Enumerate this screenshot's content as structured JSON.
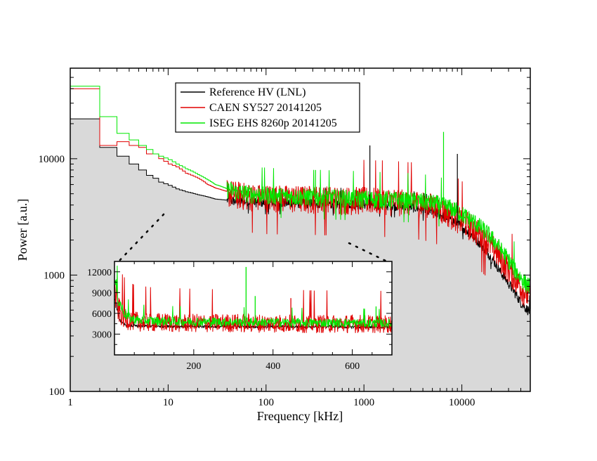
{
  "chart_data": [
    {
      "type": "line",
      "title": "",
      "xlabel": "Frequency [kHz]",
      "ylabel": "Power [a.u.]",
      "xscale": "log",
      "yscale": "log",
      "xlim": [
        1,
        50000
      ],
      "ylim": [
        100,
        60000
      ],
      "xticks": [
        1,
        10,
        100,
        1000,
        10000
      ],
      "xtick_labels": [
        "1",
        "10",
        "100",
        "1000",
        "10000"
      ],
      "yticks": [
        100,
        1000,
        10000
      ],
      "ytick_labels": [
        "100",
        "1000",
        "10000"
      ],
      "grid": false,
      "legend": {
        "position": "top-center",
        "entries": [
          "Reference HV (LNL)",
          "CAEN SY527 20141205",
          "ISEG EHS 8260p 20141205"
        ]
      },
      "series": [
        {
          "name": "Reference HV (LNL)",
          "color": "#000000",
          "filled": true,
          "fill_color": "#d9d9d9",
          "x": [
            1,
            2,
            3,
            4,
            5,
            6,
            7,
            8,
            10,
            12,
            15,
            20,
            25,
            30,
            40,
            50,
            70,
            100,
            150,
            200,
            300,
            500,
            700,
            1000,
            1500,
            2000,
            3000,
            4000,
            5000,
            6000,
            7000,
            8000,
            9000,
            10000,
            12000,
            15000,
            20000,
            25000,
            30000,
            35000,
            40000,
            45000,
            50000
          ],
          "y": [
            22000,
            12500,
            10500,
            9000,
            8000,
            7200,
            6800,
            6300,
            5900,
            5500,
            5200,
            4900,
            4700,
            4500,
            4400,
            4300,
            4250,
            4200,
            4200,
            4150,
            4150,
            4100,
            4100,
            4050,
            4000,
            3950,
            3850,
            3700,
            3500,
            3300,
            3100,
            2950,
            2800,
            2600,
            2300,
            1900,
            1400,
            1050,
            850,
            700,
            580,
            520,
            480
          ]
        },
        {
          "name": "CAEN SY527 20141205",
          "color": "#e00000",
          "x": [
            1,
            2,
            3,
            4,
            5,
            6,
            7,
            8,
            10,
            12,
            15,
            20,
            25,
            30,
            40,
            50,
            70,
            100,
            150,
            200,
            300,
            500,
            700,
            1000,
            1500,
            2000,
            3000,
            4000,
            5000,
            6000,
            7000,
            8000,
            9000,
            10000,
            12000,
            15000,
            20000,
            25000,
            30000,
            35000,
            40000,
            45000,
            50000
          ],
          "y": [
            40000,
            13000,
            14000,
            13000,
            12500,
            11000,
            11000,
            10000,
            9000,
            8500,
            7500,
            6800,
            6000,
            5600,
            5200,
            5000,
            4800,
            4700,
            4650,
            4600,
            4600,
            4550,
            4500,
            4500,
            4450,
            4400,
            4300,
            4150,
            3950,
            3750,
            3550,
            3350,
            3150,
            2950,
            2700,
            2300,
            1800,
            1400,
            1150,
            950,
            800,
            700,
            650
          ]
        },
        {
          "name": "ISEG EHS 8260p 20141205",
          "color": "#00e800",
          "x": [
            1,
            2,
            3,
            4,
            5,
            6,
            7,
            8,
            10,
            12,
            15,
            20,
            25,
            30,
            40,
            50,
            70,
            100,
            150,
            200,
            300,
            500,
            700,
            1000,
            1500,
            2000,
            3000,
            4000,
            5000,
            6000,
            7000,
            8000,
            9000,
            10000,
            12000,
            15000,
            20000,
            25000,
            30000,
            35000,
            40000,
            45000,
            50000
          ],
          "y": [
            42000,
            23000,
            16500,
            14500,
            13000,
            12000,
            11000,
            10500,
            9800,
            9000,
            8200,
            7300,
            6600,
            6000,
            5500,
            5200,
            5000,
            4900,
            4800,
            4750,
            4700,
            4650,
            4600,
            4550,
            4500,
            4450,
            4400,
            4300,
            4200,
            4050,
            3900,
            3750,
            3550,
            3350,
            3050,
            2650,
            2100,
            1650,
            1350,
            1100,
            950,
            850,
            800
          ]
        }
      ],
      "annotations": [
        {
          "type": "peak",
          "series": "ISEG EHS 8260p 20141205",
          "x": 320,
          "y": 8000
        },
        {
          "type": "peak",
          "series": "Reference HV (LNL)",
          "x": 1150,
          "y": 13000
        },
        {
          "type": "peak",
          "series": "ISEG EHS 8260p 20141205",
          "x": 6500,
          "y": 17000
        },
        {
          "type": "peak",
          "series": "Reference HV (LNL)",
          "x": 9000,
          "y": 11000
        }
      ]
    },
    {
      "type": "line",
      "title": "",
      "xlabel": "",
      "ylabel": "",
      "xscale": "linear",
      "yscale": "linear",
      "xlim": [
        0,
        700
      ],
      "ylim": [
        0,
        13500
      ],
      "xticks": [
        200,
        400,
        600
      ],
      "xtick_labels": [
        "200",
        "400",
        "600"
      ],
      "yticks": [
        3000,
        6000,
        9000,
        12000
      ],
      "ytick_labels": [
        "3000",
        "6000",
        "9000",
        "12000"
      ],
      "grid": false,
      "legend": null,
      "series": [
        {
          "name": "Reference HV (LNL)",
          "color": "#000000",
          "x": [
            1,
            10,
            20,
            30,
            40,
            60,
            100,
            200,
            300,
            400,
            500,
            600,
            700
          ],
          "y": [
            8500,
            5500,
            4500,
            4300,
            4200,
            4150,
            4150,
            4100,
            4100,
            4050,
            4100,
            4050,
            4000
          ]
        },
        {
          "name": "CAEN SY527 20141205",
          "color": "#e00000",
          "x": [
            1,
            10,
            20,
            30,
            40,
            60,
            100,
            200,
            300,
            400,
            500,
            600,
            700
          ],
          "y": [
            9000,
            6500,
            5600,
            5200,
            5000,
            4800,
            4700,
            4600,
            4600,
            4550,
            4500,
            4500,
            4450
          ]
        },
        {
          "name": "ISEG EHS 8260p 20141205",
          "color": "#00e800",
          "x": [
            1,
            10,
            20,
            30,
            40,
            60,
            100,
            200,
            300,
            400,
            500,
            600,
            700
          ],
          "y": [
            10500,
            8000,
            6600,
            5700,
            5300,
            5000,
            4900,
            4800,
            4750,
            4700,
            4650,
            4600,
            4550
          ]
        }
      ],
      "annotations": [
        {
          "type": "peak",
          "series": "ISEG EHS 8260p 20141205",
          "x": 332,
          "y": 12700
        },
        {
          "type": "peak",
          "series": "ISEG EHS 8260p 20141205",
          "x": 355,
          "y": 8500
        },
        {
          "type": "peak",
          "series": "CAEN SY527 20141205",
          "x": 445,
          "y": 8200
        },
        {
          "type": "peak",
          "series": "ISEG EHS 8260p 20141205",
          "x": 660,
          "y": 7000
        }
      ]
    }
  ]
}
